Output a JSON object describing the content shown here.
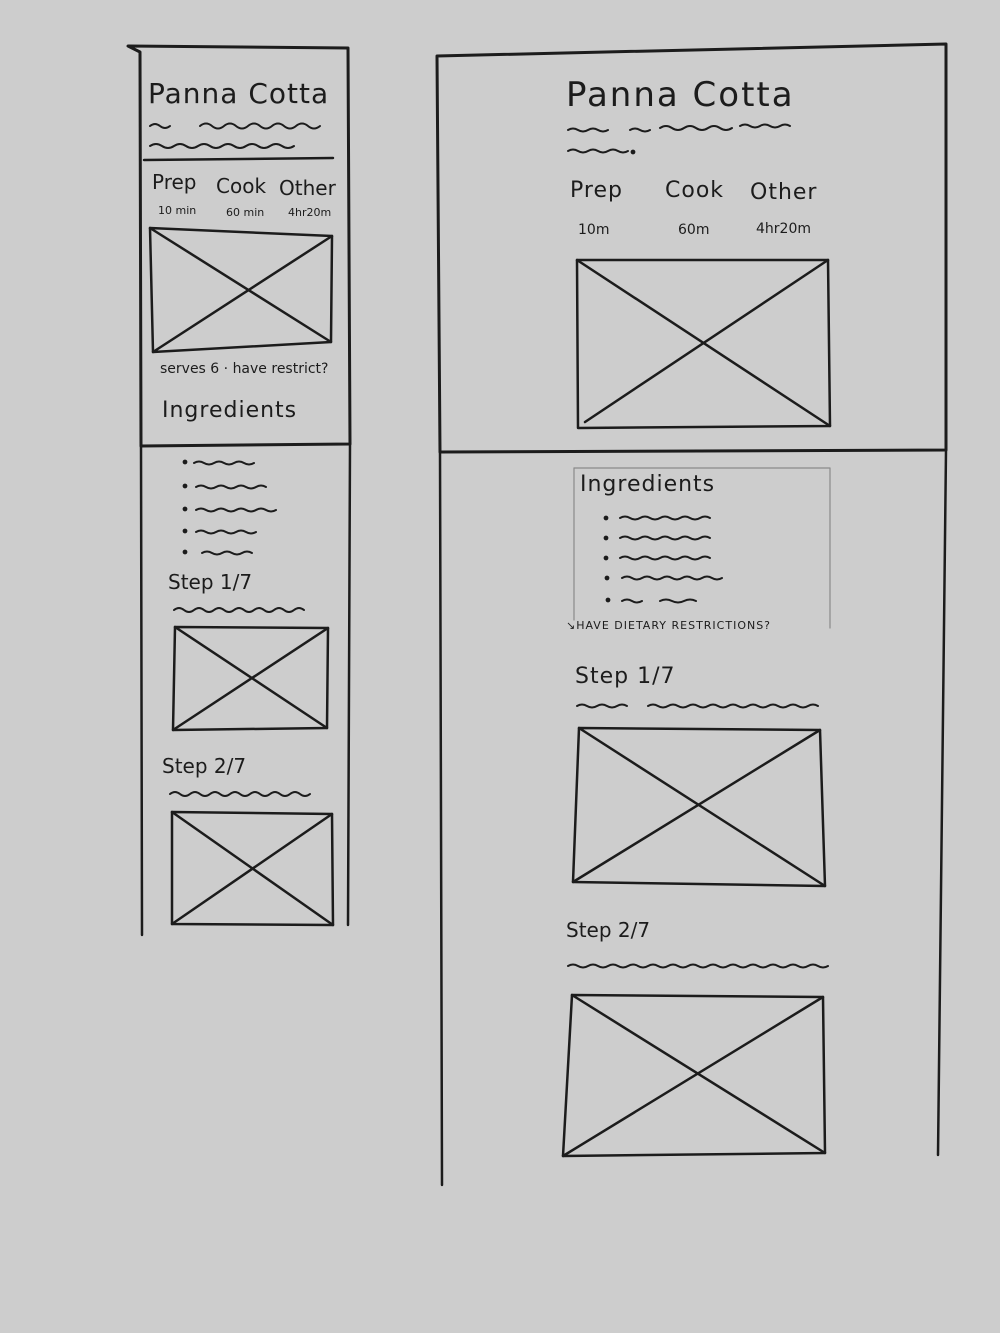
{
  "mobile": {
    "title": "Panna Cotta",
    "times": [
      {
        "label": "Prep",
        "value": "10 min"
      },
      {
        "label": "Cook",
        "value": "60 min"
      },
      {
        "label": "Other",
        "value": "4hr20m"
      }
    ],
    "serves_note": "serves 6 · have restrict?",
    "ingredients_heading": "Ingredients",
    "steps": [
      {
        "label": "Step 1/7"
      },
      {
        "label": "Step 2/7"
      }
    ]
  },
  "desktop": {
    "title": "Panna Cotta",
    "times": [
      {
        "label": "Prep",
        "value": "10m"
      },
      {
        "label": "Cook",
        "value": "60m"
      },
      {
        "label": "Other",
        "value": "4hr20m"
      }
    ],
    "ingredients_heading": "Ingredients",
    "dietary_note": "↘HAVE DIETARY RESTRICTIONS?",
    "steps": [
      {
        "label": "Step 1/7"
      },
      {
        "label": "Step 2/7"
      }
    ]
  },
  "colors": {
    "paper": "#cdcdcd",
    "ink": "#1c1c1c"
  }
}
